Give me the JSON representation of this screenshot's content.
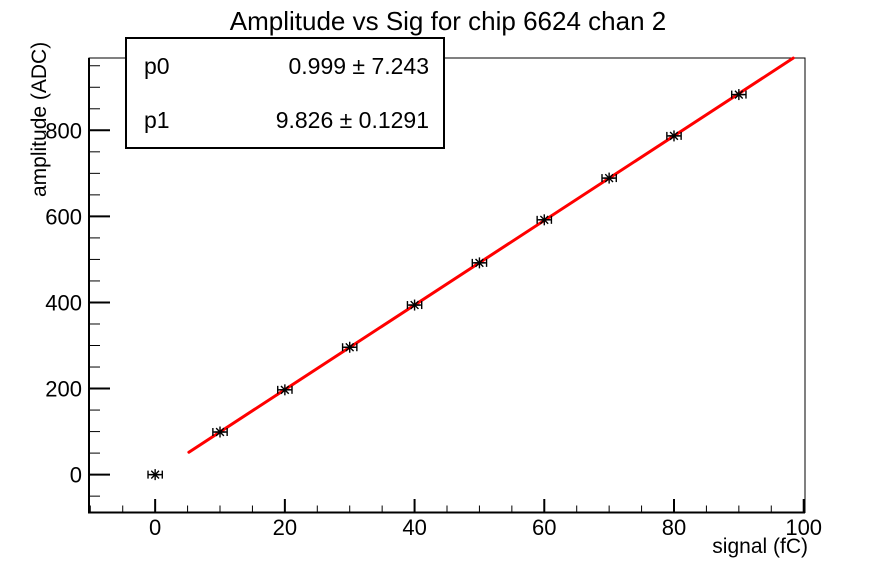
{
  "title": "Amplitude vs Sig for chip 6624 chan 2",
  "stats_box": {
    "rows": [
      {
        "name": "p0",
        "value": "0.999 ± 7.243"
      },
      {
        "name": "p1",
        "value": "9.826 ± 0.1291"
      }
    ]
  },
  "colors": {
    "fit_line": "#ff0000",
    "axis": "#000000",
    "text": "#000000",
    "background": "#ffffff"
  },
  "chart_data": {
    "type": "scatter",
    "title": "Amplitude vs Sig for chip 6624 chan 2",
    "xlabel": "signal (fC)",
    "ylabel": "amplitude (ADC)",
    "x": [
      0,
      10,
      20,
      30,
      40,
      50,
      60,
      70,
      80,
      90
    ],
    "y": [
      0,
      99,
      197,
      296,
      394,
      492,
      592,
      689,
      787,
      883
    ],
    "xerr": 1.1,
    "xlim": [
      -10.2,
      100.2
    ],
    "ylim": [
      -88,
      968
    ],
    "xticks": [
      0,
      20,
      40,
      60,
      80,
      100
    ],
    "yticks": [
      0,
      200,
      400,
      600,
      800
    ],
    "x_minor_step": 5,
    "y_minor_step": 50,
    "grid": false,
    "legend": "none",
    "marker": "asterisk",
    "fit": {
      "type": "linear",
      "p0": 0.999,
      "p1": 9.826,
      "x_start": 5.2,
      "x_end": 98.4
    }
  }
}
